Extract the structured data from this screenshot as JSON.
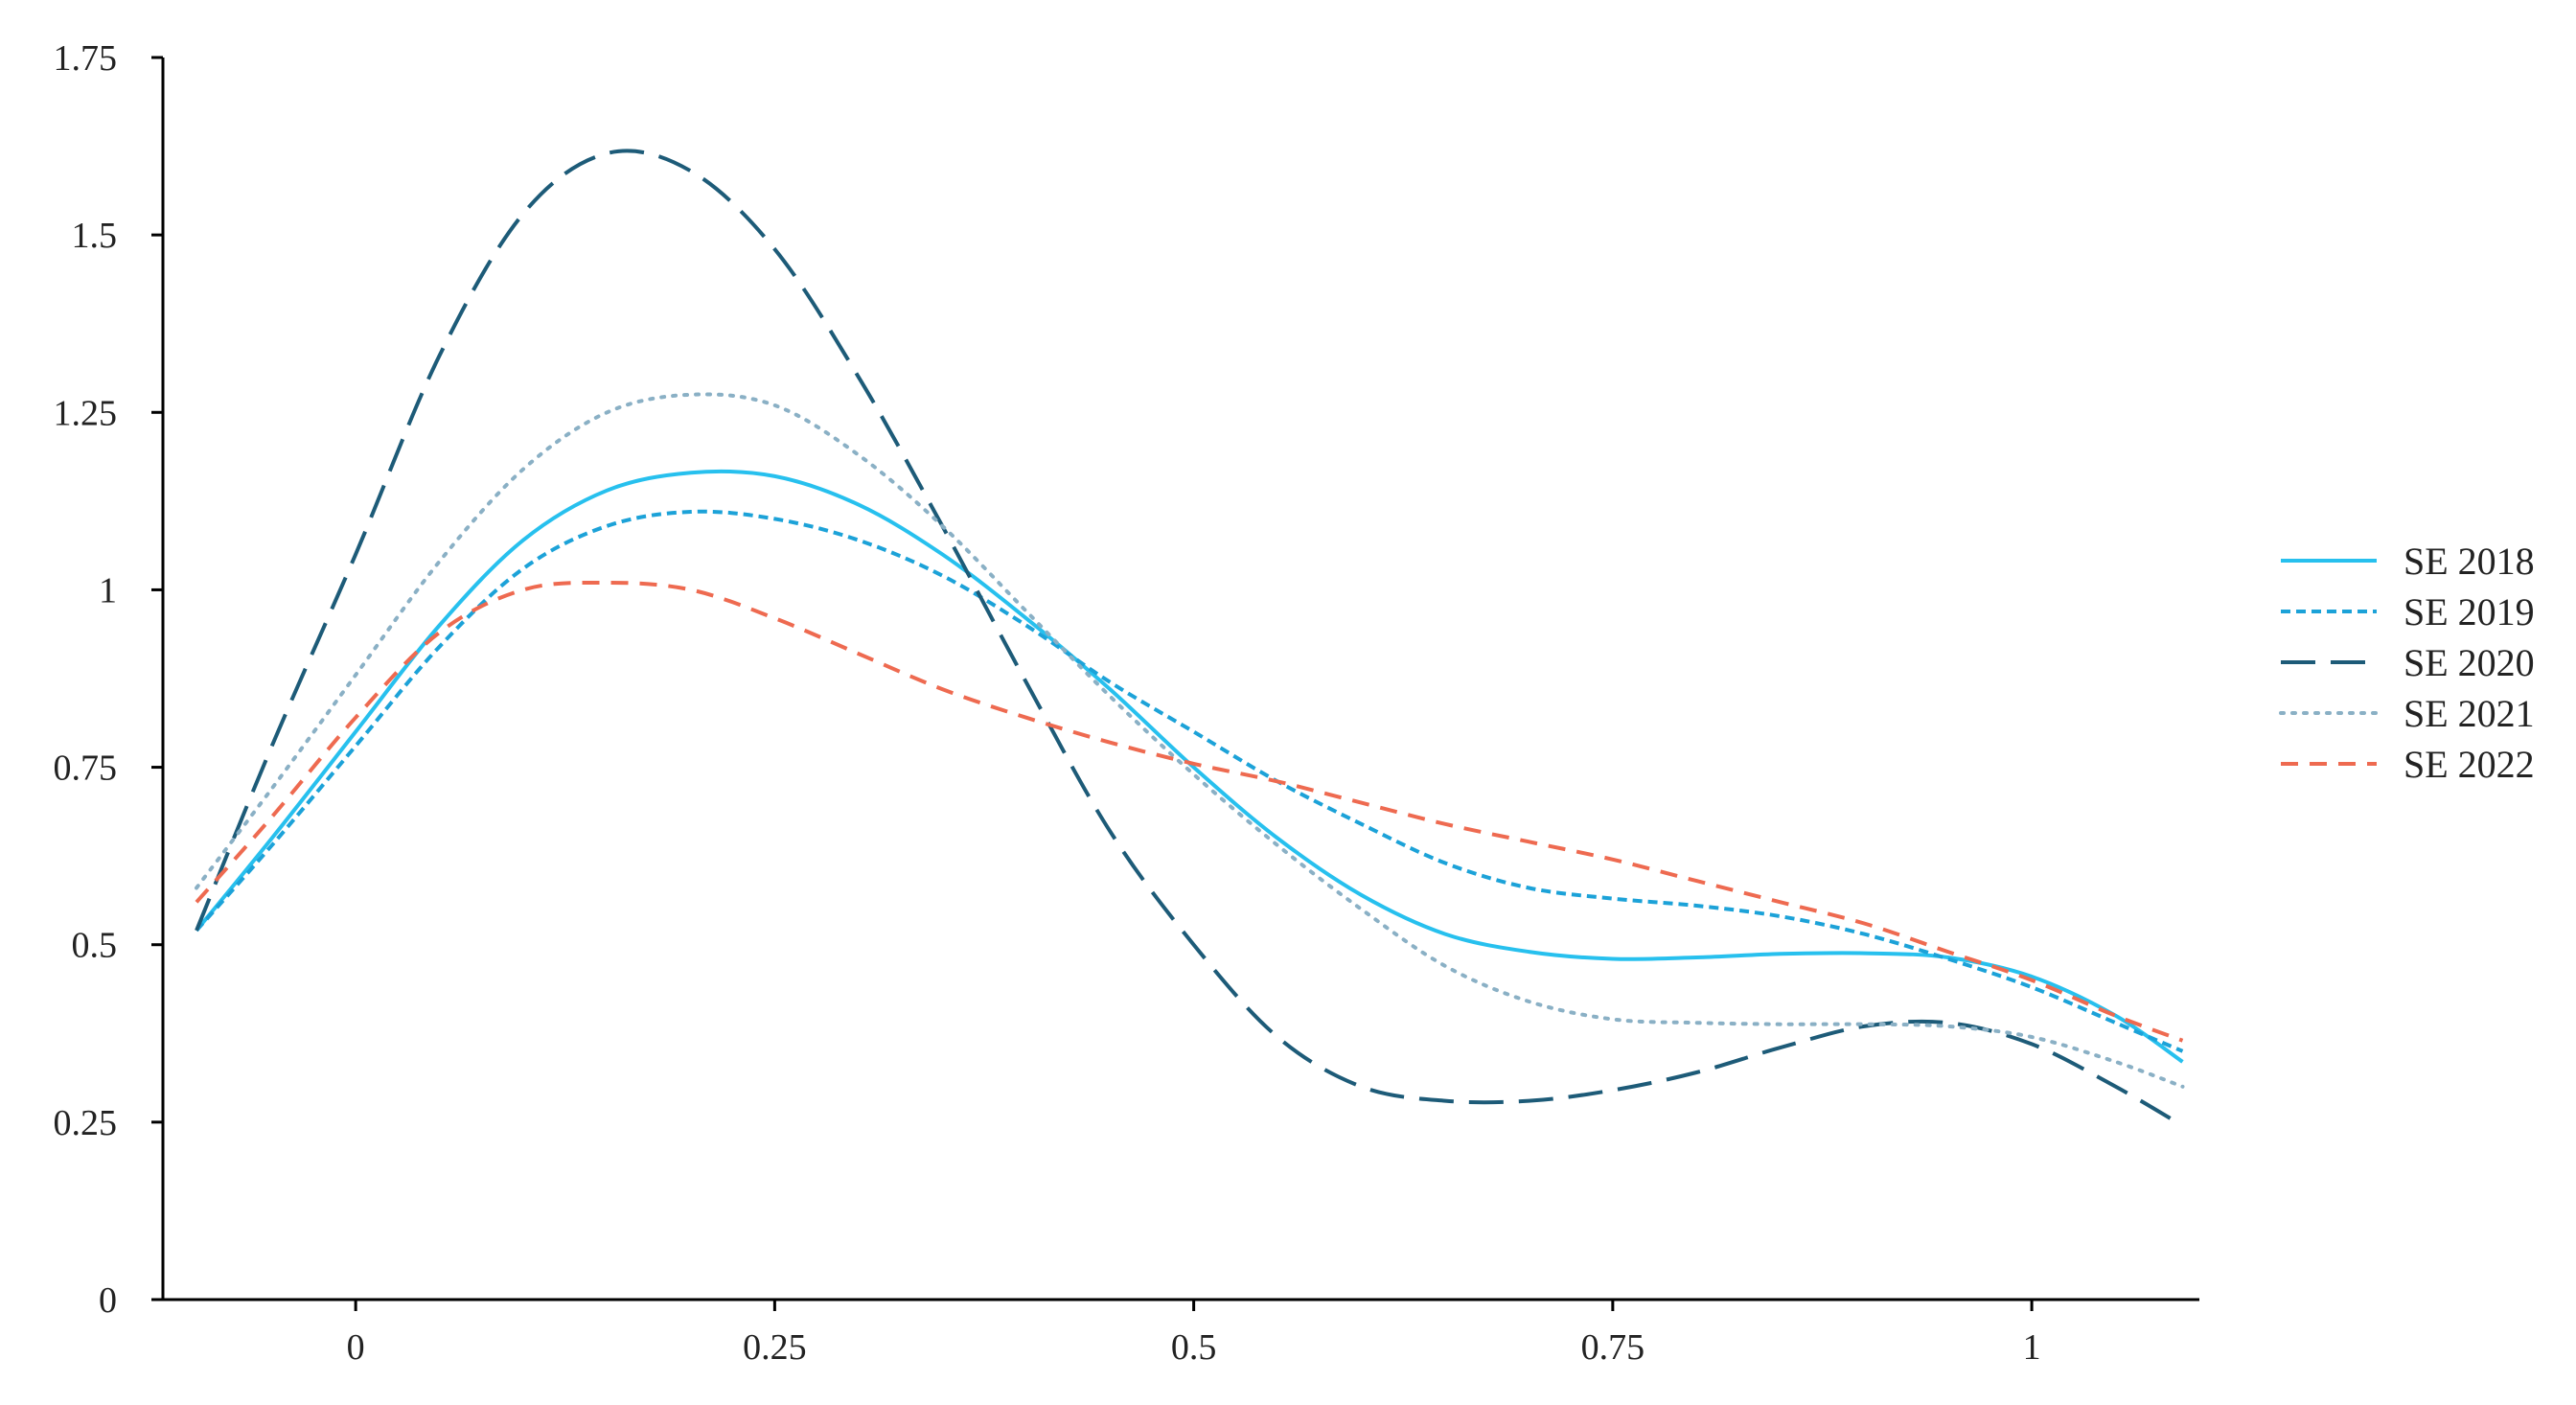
{
  "chart_data": {
    "type": "line",
    "title": "",
    "xlabel": "",
    "ylabel": "",
    "xlim": [
      -0.115,
      1.1
    ],
    "ylim": [
      0,
      1.75
    ],
    "x_ticks": [
      0,
      0.25,
      0.5,
      0.75,
      1
    ],
    "x_tick_labels": [
      "0",
      "0.25",
      "0.5",
      "0.75",
      "1"
    ],
    "y_ticks": [
      0,
      0.25,
      0.5,
      0.75,
      1,
      1.25,
      1.5,
      1.75
    ],
    "y_tick_labels": [
      "0",
      "0.25",
      "0.5",
      "0.75",
      "1",
      "1.25",
      "1.5",
      "1.75"
    ],
    "grid": false,
    "legend_position": "right",
    "series": [
      {
        "name": "SE 2018",
        "color": "#27c0ee",
        "dash": "solid",
        "x": [
          -0.095,
          -0.05,
          0,
          0.05,
          0.1,
          0.15,
          0.2,
          0.25,
          0.3,
          0.35,
          0.4,
          0.45,
          0.5,
          0.55,
          0.6,
          0.65,
          0.7,
          0.75,
          0.8,
          0.85,
          0.9,
          0.95,
          1.0,
          1.05,
          1.09
        ],
        "y": [
          0.52,
          0.65,
          0.8,
          0.95,
          1.07,
          1.14,
          1.165,
          1.16,
          1.12,
          1.05,
          0.96,
          0.86,
          0.75,
          0.65,
          0.57,
          0.515,
          0.49,
          0.48,
          0.482,
          0.487,
          0.488,
          0.482,
          0.455,
          0.4,
          0.335
        ]
      },
      {
        "name": "SE 2019",
        "color": "#1ca2d8",
        "dash": "short",
        "x": [
          -0.095,
          -0.05,
          0,
          0.05,
          0.1,
          0.15,
          0.2,
          0.25,
          0.3,
          0.35,
          0.4,
          0.45,
          0.5,
          0.55,
          0.6,
          0.65,
          0.7,
          0.75,
          0.8,
          0.85,
          0.9,
          0.95,
          1.0,
          1.05,
          1.09
        ],
        "y": [
          0.52,
          0.64,
          0.78,
          0.92,
          1.03,
          1.09,
          1.11,
          1.1,
          1.07,
          1.02,
          0.95,
          0.87,
          0.8,
          0.73,
          0.67,
          0.615,
          0.58,
          0.565,
          0.555,
          0.54,
          0.515,
          0.48,
          0.44,
          0.39,
          0.35
        ]
      },
      {
        "name": "SE 2020",
        "color": "#1d5b78",
        "dash": "long",
        "x": [
          -0.095,
          -0.05,
          0,
          0.05,
          0.1,
          0.15,
          0.2,
          0.25,
          0.3,
          0.35,
          0.4,
          0.45,
          0.5,
          0.55,
          0.6,
          0.65,
          0.7,
          0.75,
          0.8,
          0.85,
          0.9,
          0.95,
          1.0,
          1.05,
          1.09
        ],
        "y": [
          0.52,
          0.78,
          1.05,
          1.33,
          1.53,
          1.615,
          1.59,
          1.48,
          1.3,
          1.09,
          0.87,
          0.66,
          0.5,
          0.37,
          0.3,
          0.28,
          0.28,
          0.295,
          0.32,
          0.355,
          0.385,
          0.39,
          0.36,
          0.3,
          0.245
        ]
      },
      {
        "name": "SE 2021",
        "color": "#8ab0c5",
        "dash": "dotted",
        "x": [
          -0.095,
          -0.05,
          0,
          0.05,
          0.1,
          0.15,
          0.2,
          0.25,
          0.3,
          0.35,
          0.4,
          0.45,
          0.5,
          0.55,
          0.6,
          0.65,
          0.7,
          0.75,
          0.8,
          0.85,
          0.9,
          0.95,
          1.0,
          1.05,
          1.09
        ],
        "y": [
          0.58,
          0.72,
          0.88,
          1.04,
          1.17,
          1.25,
          1.275,
          1.26,
          1.19,
          1.09,
          0.97,
          0.85,
          0.74,
          0.64,
          0.55,
          0.47,
          0.42,
          0.395,
          0.39,
          0.388,
          0.388,
          0.385,
          0.37,
          0.335,
          0.3
        ]
      },
      {
        "name": "SE 2022",
        "color": "#ee6a50",
        "dash": "medium",
        "x": [
          -0.095,
          -0.05,
          0,
          0.05,
          0.1,
          0.15,
          0.2,
          0.25,
          0.3,
          0.35,
          0.4,
          0.45,
          0.5,
          0.55,
          0.6,
          0.65,
          0.7,
          0.75,
          0.8,
          0.85,
          0.9,
          0.95,
          1.0,
          1.05,
          1.09
        ],
        "y": [
          0.56,
          0.68,
          0.82,
          0.94,
          1.0,
          1.01,
          1.0,
          0.96,
          0.91,
          0.86,
          0.82,
          0.785,
          0.755,
          0.73,
          0.7,
          0.67,
          0.645,
          0.62,
          0.59,
          0.56,
          0.53,
          0.49,
          0.45,
          0.4,
          0.365
        ]
      }
    ]
  }
}
